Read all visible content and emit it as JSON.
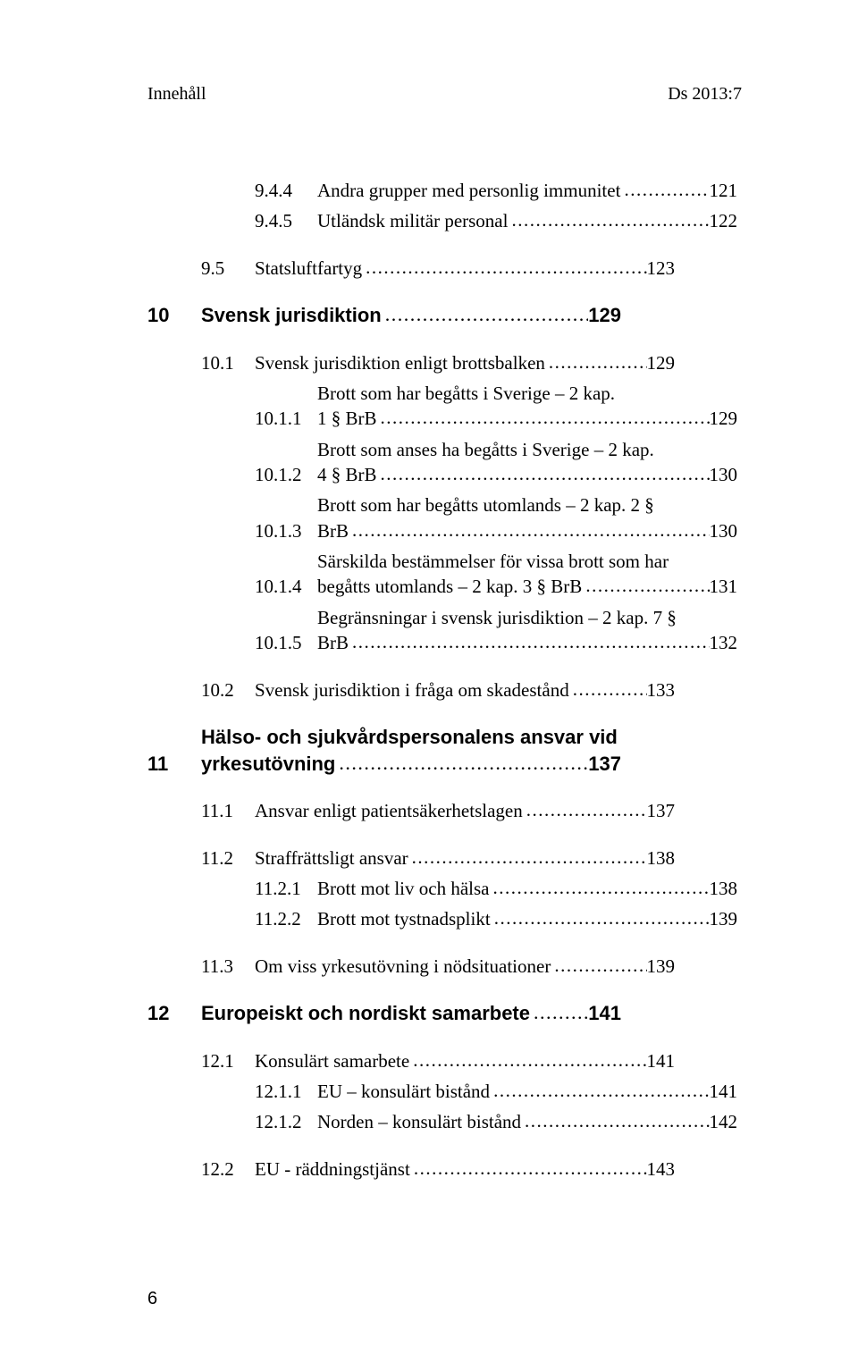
{
  "running_head": {
    "left": "Innehåll",
    "right": "Ds 2013:7"
  },
  "footer_page": "6",
  "dots": "............................................................................................................................................",
  "toc": [
    {
      "rows": [
        {
          "level": "sub2",
          "num": "9.4.4",
          "lines": [
            "Andra grupper med personlig immunitet"
          ],
          "page": "121"
        },
        {
          "level": "sub2",
          "num": "9.4.5",
          "lines": [
            "Utländsk militär personal"
          ],
          "page": "122"
        }
      ]
    },
    {
      "rows": [
        {
          "level": "sub",
          "num": "9.5",
          "lines": [
            "Statsluftfartyg"
          ],
          "page": "123"
        }
      ]
    },
    {
      "rows": [
        {
          "level": "top",
          "class": "chapter",
          "num": "10",
          "lines": [
            "Svensk jurisdiktion"
          ],
          "page": "129"
        }
      ]
    },
    {
      "rows": [
        {
          "level": "sub",
          "num": "10.1",
          "lines": [
            "Svensk jurisdiktion enligt brottsbalken"
          ],
          "page": "129"
        },
        {
          "level": "sub2",
          "num": "10.1.1",
          "lines": [
            "Brott som har begåtts i Sverige – 2 kap.",
            "1 § BrB"
          ],
          "page": "129"
        },
        {
          "level": "sub2",
          "num": "10.1.2",
          "lines": [
            "Brott som anses ha begåtts i Sverige – 2 kap.",
            "4 § BrB"
          ],
          "page": "130"
        },
        {
          "level": "sub2",
          "num": "10.1.3",
          "lines": [
            "Brott som har begåtts utomlands – 2 kap. 2 §",
            "BrB"
          ],
          "page": "130"
        },
        {
          "level": "sub2",
          "num": "10.1.4",
          "lines": [
            "Särskilda bestämmelser för vissa brott som har",
            "begåtts utomlands – 2 kap. 3 § BrB"
          ],
          "page": "131"
        },
        {
          "level": "sub2",
          "num": "10.1.5",
          "lines": [
            "Begränsningar i svensk jurisdiktion – 2 kap. 7 §",
            "BrB"
          ],
          "page": "132"
        }
      ]
    },
    {
      "rows": [
        {
          "level": "sub",
          "num": "10.2",
          "lines": [
            "Svensk jurisdiktion i fråga om skadestånd"
          ],
          "page": "133"
        }
      ]
    },
    {
      "rows": [
        {
          "level": "top",
          "class": "chapter",
          "num": "11",
          "lines": [
            "Hälso- och sjukvårdspersonalens ansvar vid",
            "yrkesutövning"
          ],
          "page": "137"
        }
      ]
    },
    {
      "rows": [
        {
          "level": "sub",
          "num": "11.1",
          "lines": [
            "Ansvar enligt patientsäkerhetslagen"
          ],
          "page": "137"
        }
      ]
    },
    {
      "rows": [
        {
          "level": "sub",
          "num": "11.2",
          "lines": [
            "Straffrättsligt ansvar"
          ],
          "page": "138"
        },
        {
          "level": "sub2",
          "num": "11.2.1",
          "lines": [
            "Brott mot liv och hälsa"
          ],
          "page": "138"
        },
        {
          "level": "sub2",
          "num": "11.2.2",
          "lines": [
            "Brott mot tystnadsplikt"
          ],
          "page": "139"
        }
      ]
    },
    {
      "rows": [
        {
          "level": "sub",
          "num": "11.3",
          "lines": [
            "Om viss yrkesutövning i nödsituationer"
          ],
          "page": "139"
        }
      ]
    },
    {
      "rows": [
        {
          "level": "top",
          "class": "chapter",
          "num": "12",
          "lines": [
            "Europeiskt och nordiskt samarbete"
          ],
          "page": "141"
        }
      ]
    },
    {
      "rows": [
        {
          "level": "sub",
          "num": "12.1",
          "lines": [
            "Konsulärt samarbete"
          ],
          "page": "141"
        },
        {
          "level": "sub2",
          "num": "12.1.1",
          "lines": [
            "EU – konsulärt bistånd"
          ],
          "page": "141"
        },
        {
          "level": "sub2",
          "num": "12.1.2",
          "lines": [
            "Norden – konsulärt bistånd"
          ],
          "page": "142"
        }
      ]
    },
    {
      "rows": [
        {
          "level": "sub",
          "num": "12.2",
          "lines": [
            "EU - räddningstjänst"
          ],
          "page": "143"
        }
      ]
    }
  ]
}
